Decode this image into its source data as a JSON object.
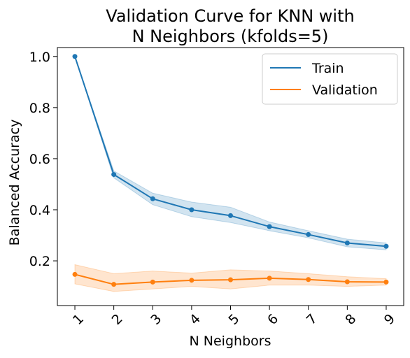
{
  "chart_data": {
    "type": "line",
    "title_lines": [
      "Validation Curve for KNN with",
      "N Neighbors (kfolds=5)"
    ],
    "xlabel": "N Neighbors",
    "ylabel": "Balanced Accuracy",
    "x": [
      1,
      2,
      3,
      4,
      5,
      6,
      7,
      8,
      9
    ],
    "xlim": [
      0.55,
      9.45
    ],
    "ylim": [
      0.025,
      1.035
    ],
    "xticks": [
      "1",
      "2",
      "3",
      "4",
      "5",
      "6",
      "7",
      "8",
      "9"
    ],
    "yticks": [
      0.2,
      0.4,
      0.6,
      0.8,
      1.0
    ],
    "ytick_labels": [
      "0.2",
      "0.4",
      "0.6",
      "0.8",
      "1.0"
    ],
    "xtick_rotation": -45,
    "grid": false,
    "legend_position": "top-right",
    "series": [
      {
        "name": "Train",
        "color": "#1f77b4",
        "values": [
          1.0,
          0.538,
          0.443,
          0.4,
          0.377,
          0.334,
          0.303,
          0.27,
          0.257
        ],
        "lower": [
          1.0,
          0.525,
          0.42,
          0.373,
          0.35,
          0.318,
          0.29,
          0.255,
          0.243
        ],
        "upper": [
          1.0,
          0.552,
          0.465,
          0.43,
          0.41,
          0.352,
          0.318,
          0.285,
          0.27
        ]
      },
      {
        "name": "Validation",
        "color": "#ff7f0e",
        "values": [
          0.147,
          0.108,
          0.117,
          0.124,
          0.126,
          0.132,
          0.127,
          0.118,
          0.117
        ],
        "lower": [
          0.11,
          0.08,
          0.09,
          0.1,
          0.09,
          0.105,
          0.105,
          0.1,
          0.105
        ],
        "upper": [
          0.185,
          0.15,
          0.16,
          0.152,
          0.165,
          0.16,
          0.15,
          0.138,
          0.13
        ]
      }
    ]
  }
}
